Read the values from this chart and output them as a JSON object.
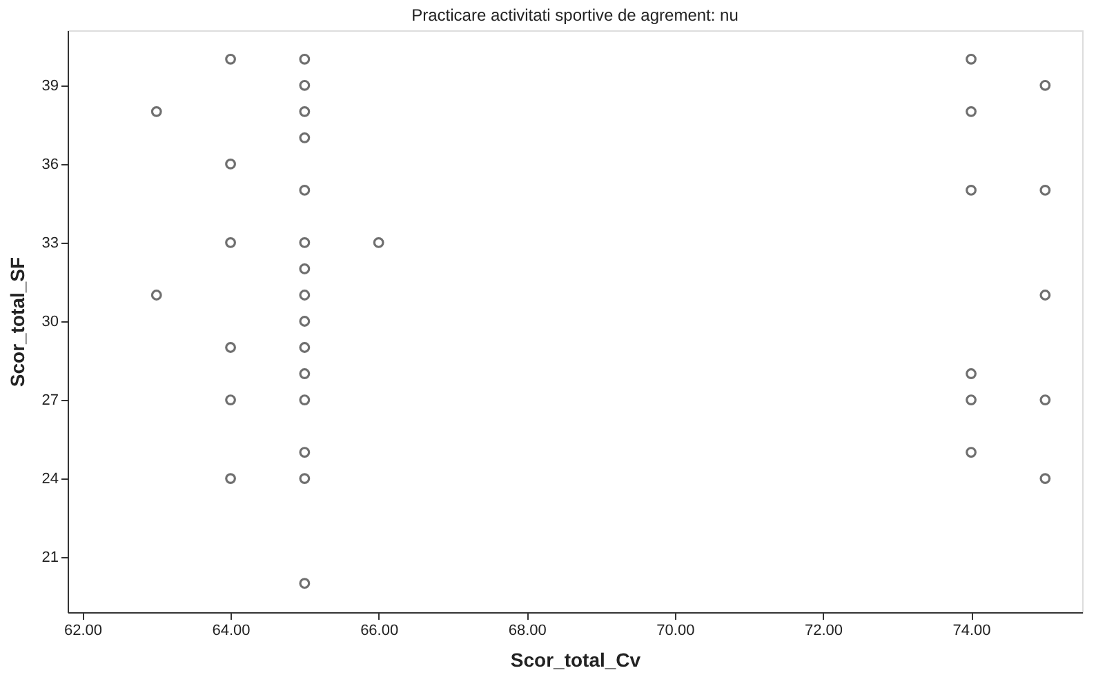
{
  "chart_data": {
    "type": "scatter",
    "title": "Practicare activitati sportive de agrement: nu",
    "xlabel": "Scor_total_Cv",
    "ylabel": "Scor_total_SF",
    "x": [
      63,
      63,
      64,
      64,
      64,
      64,
      64,
      64,
      65,
      65,
      65,
      65,
      65,
      65,
      65,
      65,
      65,
      65,
      65,
      65,
      65,
      65,
      65,
      66,
      74,
      74,
      74,
      74,
      74,
      74,
      75,
      75,
      75,
      75,
      75
    ],
    "series": [
      {
        "color": "#333333",
        "values": [
          38,
          31,
          40,
          36,
          33,
          29,
          27,
          24,
          40,
          39,
          38,
          37,
          35,
          33,
          32,
          31,
          30,
          29,
          28,
          27,
          25,
          24,
          20,
          33,
          40,
          38,
          35,
          28,
          27,
          25,
          39,
          35,
          31,
          27,
          24
        ]
      }
    ],
    "xlim": [
      61.8,
      75.5
    ],
    "ylim": [
      18.9,
      41.1
    ],
    "xticks": [
      {
        "value": 62,
        "label": "62.00"
      },
      {
        "value": 64,
        "label": "64.00"
      },
      {
        "value": 66,
        "label": "66.00"
      },
      {
        "value": 68,
        "label": "68.00"
      },
      {
        "value": 70,
        "label": "70.00"
      },
      {
        "value": 72,
        "label": "72.00"
      },
      {
        "value": 74,
        "label": "74.00"
      }
    ],
    "yticks": [
      21,
      24,
      27,
      30,
      33,
      36,
      39
    ],
    "marker": "circle",
    "grid": false
  }
}
